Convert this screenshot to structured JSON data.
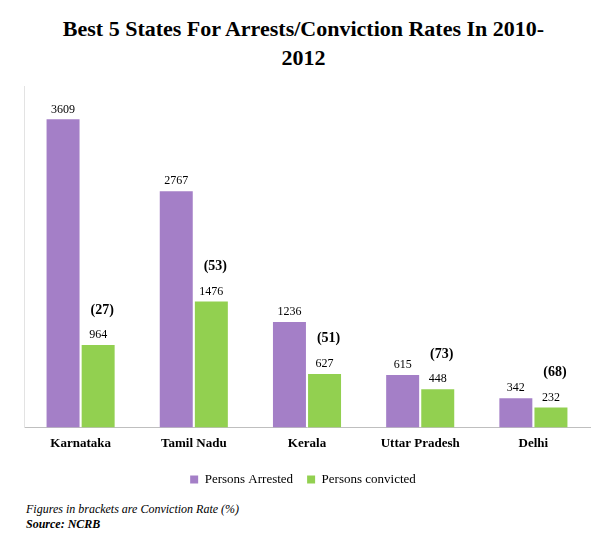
{
  "chart_data": {
    "type": "bar",
    "title": "Best 5 States For Arrests/Conviction Rates In 2010-2012",
    "categories": [
      "Karnataka",
      "Tamil Nadu",
      "Kerala",
      "Uttar Pradesh",
      "Delhi"
    ],
    "series": [
      {
        "name": "Persons Arrested",
        "color": "#a47fc7",
        "values": [
          3609,
          2767,
          1236,
          615,
          342
        ]
      },
      {
        "name": "Persons convicted",
        "color": "#92d050",
        "values": [
          964,
          1476,
          627,
          448,
          232
        ]
      }
    ],
    "ylim": [
      0,
      4000
    ],
    "tick_labels": "x",
    "grid": false,
    "legend": "bottom",
    "data_labels": true,
    "conviction_rate": {
      "values": [
        27,
        53,
        51,
        73,
        68
      ],
      "value_labels": [
        "(27)",
        "(53)",
        "(51)",
        "(73)",
        "(68)"
      ]
    },
    "note": "Figures in brackets are Conviction Rate (%)",
    "source": "Source: NCRB"
  }
}
